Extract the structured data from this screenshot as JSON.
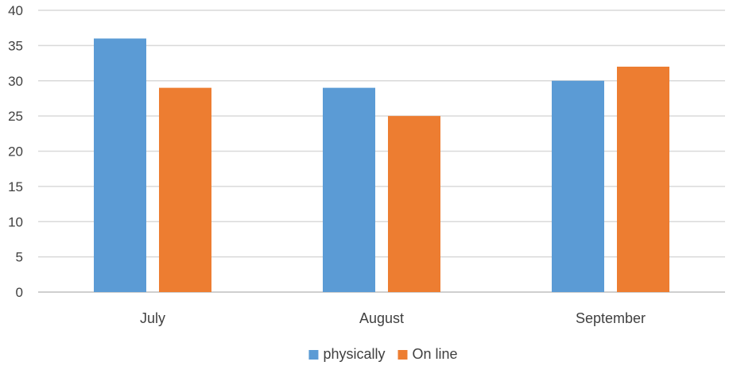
{
  "chart_data": {
    "type": "bar",
    "categories": [
      "July",
      "August",
      "September"
    ],
    "series": [
      {
        "name": "physically",
        "values": [
          36,
          29,
          30
        ],
        "color": "#5B9BD5"
      },
      {
        "name": "On line",
        "values": [
          29,
          25,
          32
        ],
        "color": "#ED7D31"
      }
    ],
    "ylim": [
      0,
      40
    ],
    "yticks": [
      0,
      5,
      10,
      15,
      20,
      25,
      30,
      35,
      40
    ],
    "grid": true,
    "legend_position": "bottom-center",
    "title": "",
    "xlabel": "",
    "ylabel": ""
  }
}
